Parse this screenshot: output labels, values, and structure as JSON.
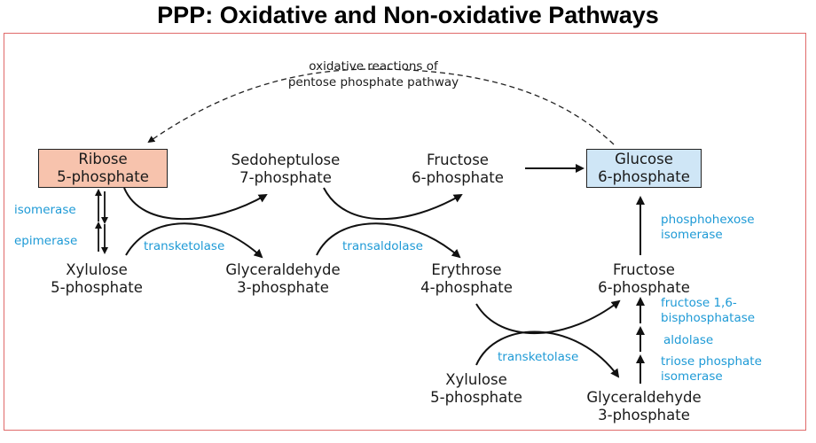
{
  "title": "PPP: Oxidative and Non-oxidative Pathways",
  "cycle_note": [
    "oxidative reactions of",
    "pentose phosphate pathway"
  ],
  "nodes": {
    "ribose": [
      "Ribose",
      "5-phosphate"
    ],
    "sedo": [
      "Sedoheptulose",
      "7-phosphate"
    ],
    "fructose_top": [
      "Fructose",
      "6-phosphate"
    ],
    "glucose": [
      "Glucose",
      "6-phosphate"
    ],
    "xylulose_left": [
      "Xylulose",
      "5-phosphate"
    ],
    "glyceraldehyde_mid": [
      "Glyceraldehyde",
      "3-phosphate"
    ],
    "erythrose": [
      "Erythrose",
      "4-phosphate"
    ],
    "fructose_right": [
      "Fructose",
      "6-phosphate"
    ],
    "xylulose_bottom": [
      "Xylulose",
      "5-phosphate"
    ],
    "glyceraldehyde_bottom": [
      "Glyceraldehyde",
      "3-phosphate"
    ]
  },
  "enzymes": {
    "isomerase": "isomerase",
    "epimerase": "epimerase",
    "transketolase_1": "transketolase",
    "transaldolase": "transaldolase",
    "transketolase_2": "transketolase",
    "phosphohexose_isomerase": [
      "phosphohexose",
      "isomerase"
    ],
    "fbpase": [
      "fructose 1,6-",
      "bisphosphatase"
    ],
    "aldolase": "aldolase",
    "tpi": [
      "triose phosphate",
      "isomerase"
    ]
  },
  "colors": {
    "enzyme": "#1e9ad6",
    "ribose_box": "#f7c3ad",
    "glucose_box": "#cfe6f6",
    "frame": "#e06a6a"
  }
}
